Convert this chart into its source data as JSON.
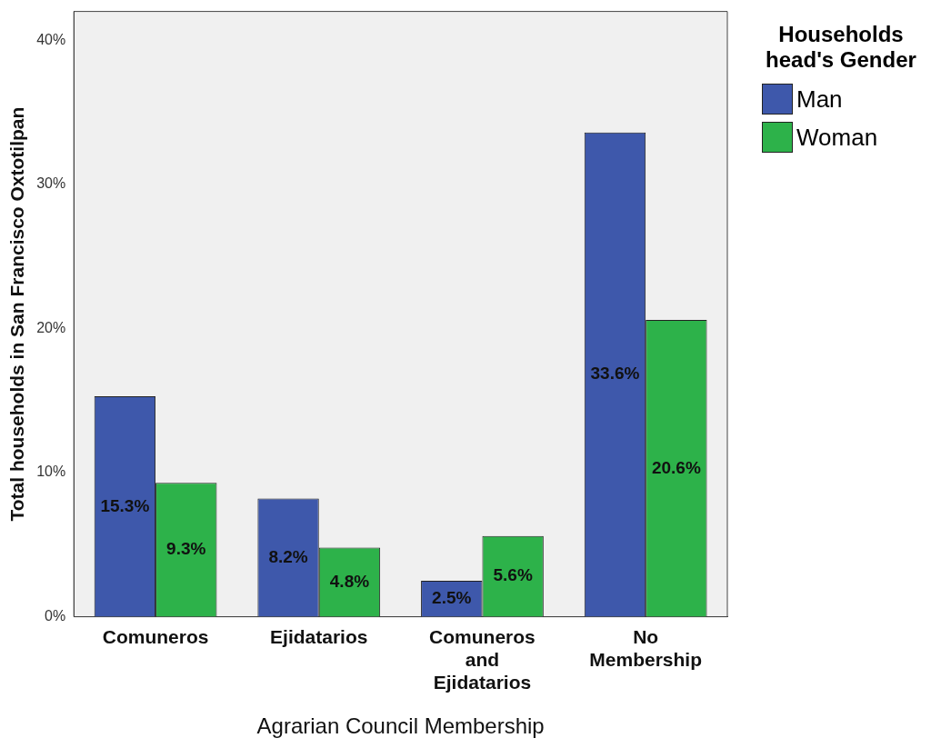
{
  "chart_data": {
    "type": "bar",
    "xlabel": "Agrarian Council Membership",
    "ylabel": "Total households in San Francisco Oxtotilpan",
    "legend_title": "Households head's Gender",
    "categories": [
      "Comuneros",
      "Ejidatarios",
      "Comuneros and Ejidatarios",
      "No Membership"
    ],
    "series": [
      {
        "name": "Man",
        "color": "#3e58ab",
        "values": [
          15.3,
          8.2,
          2.5,
          33.6
        ],
        "value_labels": [
          "15.3%",
          "8.2%",
          "2.5%",
          "33.6%"
        ]
      },
      {
        "name": "Woman",
        "color": "#2db24a",
        "values": [
          9.3,
          4.8,
          5.6,
          20.6
        ],
        "value_labels": [
          "9.3%",
          "4.8%",
          "5.6%",
          "20.6%"
        ]
      }
    ],
    "ylim": [
      0,
      42
    ],
    "yticks": [
      {
        "value": 0,
        "label": "0%"
      },
      {
        "value": 10,
        "label": "10%"
      },
      {
        "value": 20,
        "label": "20%"
      },
      {
        "value": 30,
        "label": "30%"
      },
      {
        "value": 40,
        "label": "40%"
      }
    ],
    "grid": false,
    "legend": "top right"
  }
}
